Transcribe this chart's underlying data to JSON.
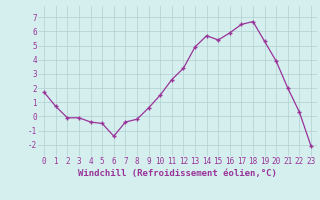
{
  "x": [
    0,
    1,
    2,
    3,
    4,
    5,
    6,
    7,
    8,
    9,
    10,
    11,
    12,
    13,
    14,
    15,
    16,
    17,
    18,
    19,
    20,
    21,
    22,
    23
  ],
  "y": [
    1.7,
    0.7,
    -0.1,
    -0.1,
    -0.4,
    -0.5,
    -1.4,
    -0.4,
    -0.2,
    0.6,
    1.5,
    2.6,
    3.4,
    4.9,
    5.7,
    5.4,
    5.9,
    6.5,
    6.7,
    5.3,
    3.9,
    2.0,
    0.3,
    -2.1
  ],
  "line_color": "#993399",
  "marker": "+",
  "markersize": 3,
  "linewidth": 0.9,
  "xlabel": "Windchill (Refroidissement éolien,°C)",
  "xlabel_fontsize": 6.5,
  "ylabel_ticks": [
    -2,
    -1,
    0,
    1,
    2,
    3,
    4,
    5,
    6,
    7
  ],
  "xtick_labels": [
    "0",
    "1",
    "2",
    "3",
    "4",
    "5",
    "6",
    "7",
    "8",
    "9",
    "10",
    "11",
    "12",
    "13",
    "14",
    "15",
    "16",
    "17",
    "18",
    "19",
    "20",
    "21",
    "22",
    "23"
  ],
  "ylim": [
    -2.8,
    7.8
  ],
  "xlim": [
    -0.5,
    23.5
  ],
  "bg_color": "#d5efef",
  "grid_color": "#b0d0d0",
  "tick_fontsize": 5.5,
  "markeredgewidth": 1.0
}
